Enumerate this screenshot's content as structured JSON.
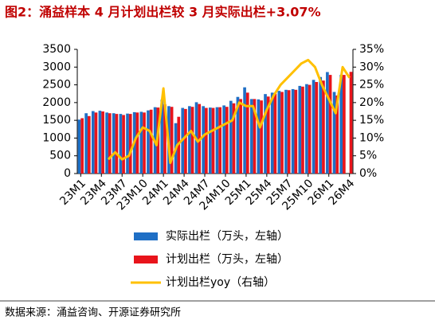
{
  "chart_data": {
    "type": "bar-line",
    "title": "图2：涌益样本 4 月计划出栏较 3 月实际出栏+3.07%",
    "source": "数据来源：涌益咨询、开源证券研究所",
    "categories": [
      "23M1",
      null,
      null,
      "23M4",
      null,
      null,
      "23M7",
      null,
      null,
      "23M10",
      null,
      null,
      "24M1",
      null,
      null,
      "24M4",
      null,
      null,
      "24M7",
      null,
      null,
      "24M10",
      null,
      null,
      "25M1",
      null,
      null,
      "25M4",
      null,
      null,
      "25M7",
      null,
      null,
      "25M10",
      null,
      null,
      "26M1",
      null,
      null,
      "26M4"
    ],
    "series": [
      {
        "name": "实际出栏（万头，左轴）",
        "color": "#1f6fc5",
        "type": "bar",
        "values": [
          1520,
          1700,
          1760,
          1770,
          1720,
          1700,
          1680,
          1690,
          1730,
          1740,
          1780,
          1870,
          2080,
          1900,
          1420,
          1850,
          1900,
          2010,
          1900,
          1860,
          1870,
          1920,
          2050,
          2160,
          2430,
          2100,
          2090,
          2240,
          2280,
          2330,
          2360,
          2380,
          2470,
          2520,
          2640,
          2720,
          2860,
          2300,
          2780,
          null
        ]
      },
      {
        "name": "计划出栏（万头，左轴）",
        "color": "#e8141b",
        "type": "bar",
        "values": [
          1560,
          1620,
          1720,
          1750,
          1700,
          1680,
          1650,
          1680,
          1720,
          1720,
          1800,
          1860,
          1950,
          1880,
          1600,
          1820,
          1880,
          1960,
          1850,
          1850,
          1870,
          1880,
          1980,
          2100,
          2280,
          2100,
          2060,
          2170,
          2250,
          2300,
          2350,
          2360,
          2450,
          2500,
          2580,
          2620,
          2780,
          2200,
          2780,
          2866
        ]
      },
      {
        "name": "计划出栏yoy（右轴）",
        "color": "#ffc000",
        "type": "line",
        "axis": "y2",
        "values": [
          null,
          null,
          null,
          null,
          4,
          6,
          4,
          5,
          10,
          13,
          12,
          8,
          24,
          3,
          8,
          10,
          12,
          9,
          11,
          12,
          13,
          14,
          15,
          20,
          19,
          19,
          13,
          18,
          22,
          25,
          27,
          29,
          31,
          32,
          30,
          25,
          21,
          17,
          30,
          27
        ]
      }
    ],
    "ylim": [
      0,
      3500
    ],
    "yticks": [
      0,
      500,
      1000,
      1500,
      2000,
      2500,
      3000,
      3500
    ],
    "y2lim": [
      0,
      35
    ],
    "y2ticks": [
      {
        "value": 0,
        "label": "0%"
      },
      {
        "value": 5,
        "label": "5%"
      },
      {
        "value": 10,
        "label": "10%"
      },
      {
        "value": 15,
        "label": "15%"
      },
      {
        "value": 20,
        "label": "20%"
      },
      {
        "value": 25,
        "label": "25%"
      },
      {
        "value": 30,
        "label": "30%"
      },
      {
        "value": 35,
        "label": "35%"
      }
    ]
  }
}
